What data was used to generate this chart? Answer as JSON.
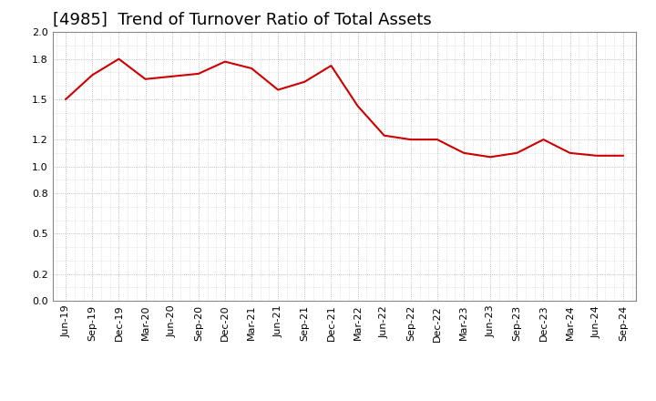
{
  "title": "[4985]  Trend of Turnover Ratio of Total Assets",
  "ylim": [
    0.0,
    2.0
  ],
  "yticks": [
    0.0,
    0.2,
    0.5,
    0.8,
    1.0,
    1.2,
    1.5,
    1.8,
    2.0
  ],
  "line_color": "#cc0000",
  "bg_color": "#ffffff",
  "plot_bg_color": "#ffffff",
  "grid_color": "#aaaaaa",
  "title_fontsize": 13,
  "x_labels": [
    "Jun-19",
    "Sep-19",
    "Dec-19",
    "Mar-20",
    "Jun-20",
    "Sep-20",
    "Dec-20",
    "Mar-21",
    "Jun-21",
    "Sep-21",
    "Dec-21",
    "Mar-22",
    "Jun-22",
    "Sep-22",
    "Dec-22",
    "Mar-23",
    "Jun-23",
    "Sep-23",
    "Dec-23",
    "Mar-24",
    "Jun-24",
    "Sep-24"
  ],
  "values": [
    1.5,
    1.68,
    1.8,
    1.65,
    1.67,
    1.69,
    1.78,
    1.73,
    1.57,
    1.63,
    1.75,
    1.45,
    1.23,
    1.2,
    1.2,
    1.1,
    1.07,
    1.1,
    1.2,
    1.1,
    1.08,
    1.08
  ]
}
